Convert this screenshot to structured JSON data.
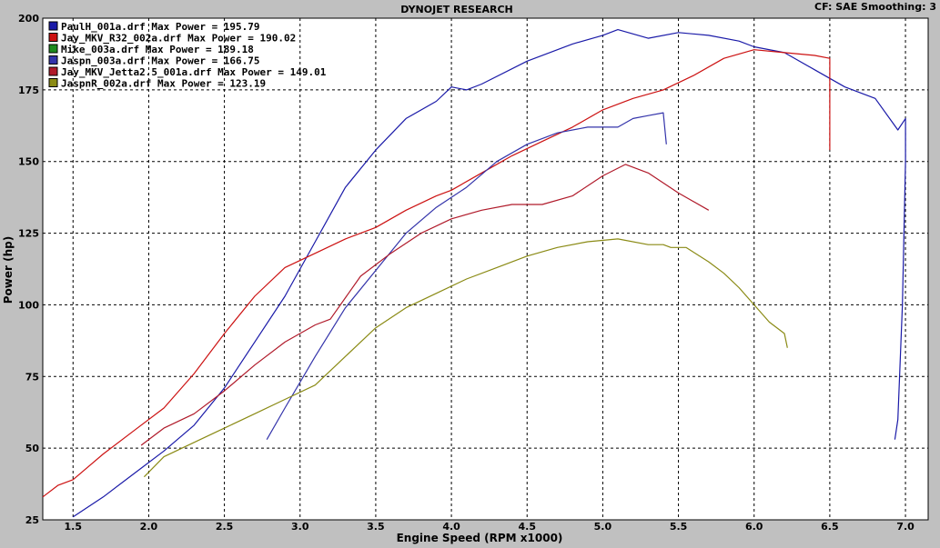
{
  "header": {
    "title": "DYNOJET RESEARCH",
    "settings": "CF: SAE  Smoothing: 3"
  },
  "chart_data": {
    "type": "line",
    "title": "DYNOJET RESEARCH",
    "xlabel": "Engine Speed (RPM x1000)",
    "ylabel": "Power (hp)",
    "xlim": [
      1.3,
      7.15
    ],
    "ylim": [
      25,
      200
    ],
    "xticks": [
      "1.5",
      "2.0",
      "2.5",
      "3.0",
      "3.5",
      "4.0",
      "4.5",
      "5.0",
      "5.5",
      "6.0",
      "6.5",
      "7.0"
    ],
    "yticks": [
      "25",
      "50",
      "75",
      "100",
      "125",
      "150",
      "175",
      "200"
    ],
    "grid": true,
    "legend_position": "top-left",
    "series": [
      {
        "name": "PaulH_001a.drf Max Power = 195.79",
        "color": "#1a1aa8",
        "x": [
          1.5,
          1.7,
          1.9,
          2.1,
          2.3,
          2.5,
          2.7,
          2.9,
          3.1,
          3.3,
          3.5,
          3.7,
          3.9,
          4.0,
          4.1,
          4.2,
          4.5,
          4.8,
          5.0,
          5.1,
          5.3,
          5.5,
          5.7,
          5.9,
          6.0,
          6.2,
          6.4,
          6.6,
          6.8,
          6.95,
          7.0,
          7.0,
          6.98,
          6.95,
          6.93
        ],
        "y": [
          26,
          33,
          41,
          49,
          58,
          71,
          87,
          103,
          122,
          141,
          154,
          165,
          171,
          176,
          175,
          177,
          185,
          191,
          194,
          196,
          193,
          195,
          194,
          192,
          190,
          188,
          182,
          176,
          172,
          161,
          165,
          150,
          100,
          60,
          53
        ]
      },
      {
        "name": "Jay_MKV_R32_002a.drf Max Power = 190.02",
        "color": "#cc1111",
        "x": [
          1.3,
          1.4,
          1.5,
          1.7,
          1.9,
          2.1,
          2.3,
          2.5,
          2.7,
          2.9,
          3.1,
          3.3,
          3.5,
          3.7,
          3.9,
          4.0,
          4.2,
          4.4,
          4.6,
          4.8,
          5.0,
          5.2,
          5.4,
          5.6,
          5.8,
          6.0,
          6.2,
          6.4,
          6.5,
          6.5
        ],
        "y": [
          33,
          37,
          39,
          48,
          56,
          64,
          76,
          90,
          103,
          113,
          118,
          123,
          127,
          133,
          138,
          140,
          146,
          152,
          157,
          162,
          168,
          172,
          175,
          180,
          186,
          189,
          188,
          187,
          186,
          154
        ]
      },
      {
        "name": "Mike_003a.drf Max Power = 189.18",
        "color": "#1e8a1e",
        "x": [],
        "y": []
      },
      {
        "name": "Jaspn_003a.drf Max Power = 166.75",
        "color": "#3333aa",
        "x": [
          2.78,
          2.9,
          3.1,
          3.3,
          3.5,
          3.7,
          3.9,
          4.1,
          4.3,
          4.5,
          4.7,
          4.9,
          5.1,
          5.2,
          5.3,
          5.4,
          5.42
        ],
        "y": [
          53,
          64,
          82,
          99,
          112,
          125,
          134,
          141,
          150,
          156,
          160,
          162,
          162,
          165,
          166,
          167,
          156
        ]
      },
      {
        "name": "Jay_MKV_Jetta2.5_001a.drf Max Power = 149.01",
        "color": "#b01a2a",
        "x": [
          1.95,
          2.1,
          2.3,
          2.5,
          2.7,
          2.9,
          3.1,
          3.2,
          3.4,
          3.6,
          3.8,
          4.0,
          4.2,
          4.4,
          4.6,
          4.8,
          5.0,
          5.15,
          5.3,
          5.5,
          5.7
        ],
        "y": [
          51,
          57,
          62,
          70,
          79,
          87,
          93,
          95,
          110,
          118,
          125,
          130,
          133,
          135,
          135,
          138,
          145,
          149,
          146,
          139,
          133
        ]
      },
      {
        "name": "JaspnR_002a.drf Max Power = 123.19",
        "color": "#8a8a14",
        "x": [
          1.97,
          2.1,
          2.3,
          2.5,
          2.7,
          2.9,
          3.1,
          3.3,
          3.5,
          3.7,
          3.9,
          4.1,
          4.3,
          4.5,
          4.7,
          4.9,
          5.1,
          5.3,
          5.4,
          5.45,
          5.55,
          5.7,
          5.8,
          5.9,
          6.0,
          6.1,
          6.2,
          6.22
        ],
        "y": [
          40,
          47,
          52,
          57,
          62,
          67,
          72,
          82,
          92,
          99,
          104,
          109,
          113,
          117,
          120,
          122,
          123,
          121,
          121,
          120,
          120,
          115,
          111,
          106,
          100,
          94,
          90,
          85
        ]
      }
    ]
  }
}
